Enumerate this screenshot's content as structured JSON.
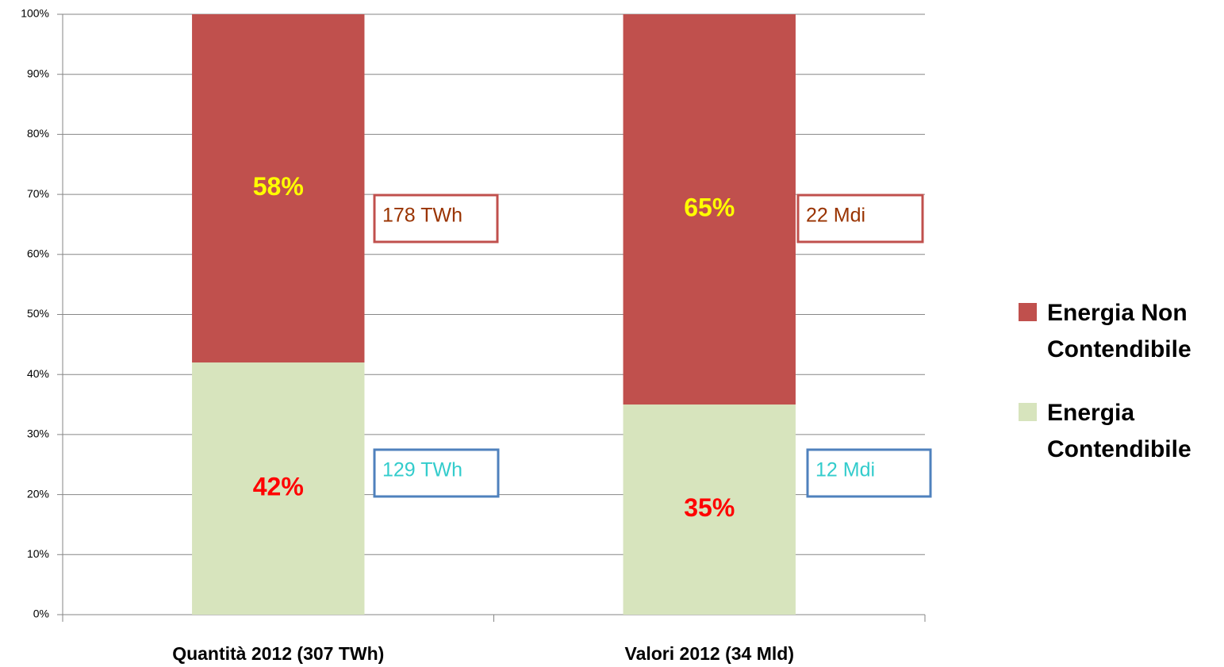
{
  "chart_data": {
    "type": "stacked_bar",
    "categories": [
      "Quantità 2012  (307 TWh)",
      "Valori 2012  (34 Mld)"
    ],
    "series": [
      {
        "name": "Energia Contendibile",
        "color": "#d7e4bd",
        "label_color": "#ff0000",
        "values": [
          42,
          35
        ],
        "value_labels": [
          "42%",
          "35%"
        ]
      },
      {
        "name": "Energia Non Contendibile",
        "color": "#c0504d",
        "label_color": "#ffff00",
        "values": [
          58,
          65
        ],
        "value_labels": [
          "58%",
          "65%"
        ]
      }
    ],
    "annotations": [
      {
        "text": "178 TWh",
        "color": "#993300",
        "border": "#c0504d"
      },
      {
        "text": "129 TWh",
        "color": "#33cccc",
        "border": "#4f81bd"
      },
      {
        "text": "22 Mdi",
        "color": "#993300",
        "border": "#c0504d"
      },
      {
        "text": "12 Mdi",
        "color": "#33cccc",
        "border": "#4f81bd"
      }
    ],
    "ylim": [
      0,
      100
    ],
    "yticks": [
      {
        "value": 0,
        "label": "0%"
      },
      {
        "value": 10,
        "label": "10%"
      },
      {
        "value": 20,
        "label": "20%"
      },
      {
        "value": 30,
        "label": "30%"
      },
      {
        "value": 40,
        "label": "40%"
      },
      {
        "value": 50,
        "label": "50%"
      },
      {
        "value": 60,
        "label": "60%"
      },
      {
        "value": 70,
        "label": "70%"
      },
      {
        "value": 80,
        "label": "80%"
      },
      {
        "value": 90,
        "label": "90%"
      },
      {
        "value": 100,
        "label": "100%"
      }
    ],
    "grid": true,
    "legend": "right"
  }
}
